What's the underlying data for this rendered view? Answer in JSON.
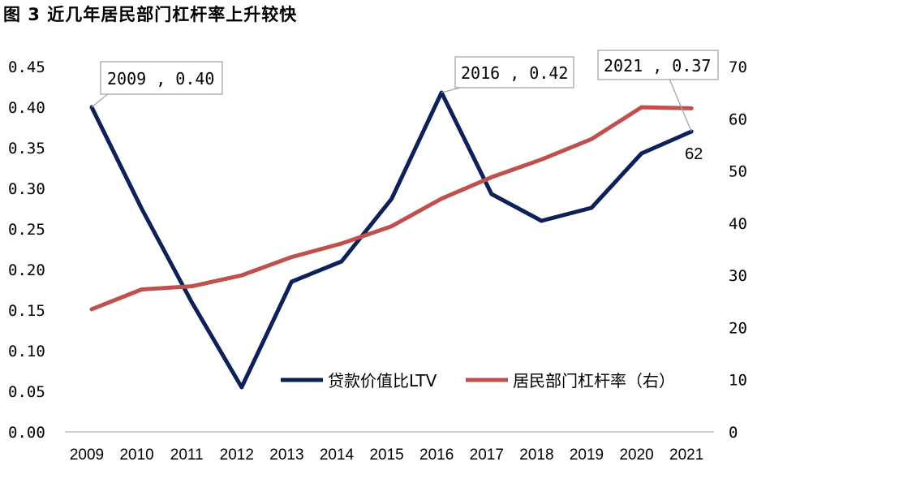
{
  "figure": {
    "title": "图 3 近几年居民部门杠杆率上升较快"
  },
  "colors": {
    "ltv": "#0d2057",
    "leverage": "#c0504d",
    "axis": "#bfbfbf",
    "callout_border": "#a6a6a6"
  },
  "chart_data": {
    "type": "line",
    "title": "",
    "categories": [
      "2009",
      "2010",
      "2011",
      "2012",
      "2013",
      "2014",
      "2015",
      "2016",
      "2017",
      "2018",
      "2019",
      "2020",
      "2021"
    ],
    "series": [
      {
        "name": "贷款价值比LTV",
        "axis": "left",
        "values": [
          0.4,
          0.275,
          0.16,
          0.055,
          0.185,
          0.21,
          0.287,
          0.418,
          0.293,
          0.26,
          0.276,
          0.343,
          0.37
        ]
      },
      {
        "name": "居民部门杠杆率（右）",
        "axis": "right",
        "values": [
          23.5,
          27.3,
          27.9,
          30.0,
          33.5,
          36.1,
          39.4,
          44.7,
          48.8,
          52.2,
          56.1,
          62.2,
          62.0
        ]
      }
    ],
    "left_axis": {
      "min": 0,
      "max": 0.45,
      "step": 0.05,
      "tick_labels": [
        "0.00",
        "0.05",
        "0.10",
        "0.15",
        "0.20",
        "0.25",
        "0.30",
        "0.35",
        "0.40",
        "0.45"
      ]
    },
    "right_axis": {
      "min": 0,
      "max": 70,
      "step": 10,
      "tick_labels": [
        "0",
        "10",
        "20",
        "30",
        "40",
        "50",
        "60",
        "70"
      ]
    },
    "legend": {
      "placement": "bottom-right",
      "items": [
        "贷款价值比LTV",
        "居民部门杠杆率（右）"
      ]
    },
    "callouts": [
      {
        "text": "2009 , 0.40",
        "category": "2009",
        "series": 0
      },
      {
        "text": "2016 , 0.42",
        "category": "2016",
        "series": 0
      },
      {
        "text": "2021 , 0.37",
        "category": "2021",
        "series": 0
      }
    ],
    "point_labels": [
      {
        "text": "62",
        "category": "2021",
        "series": 1
      }
    ],
    "grid": false
  }
}
